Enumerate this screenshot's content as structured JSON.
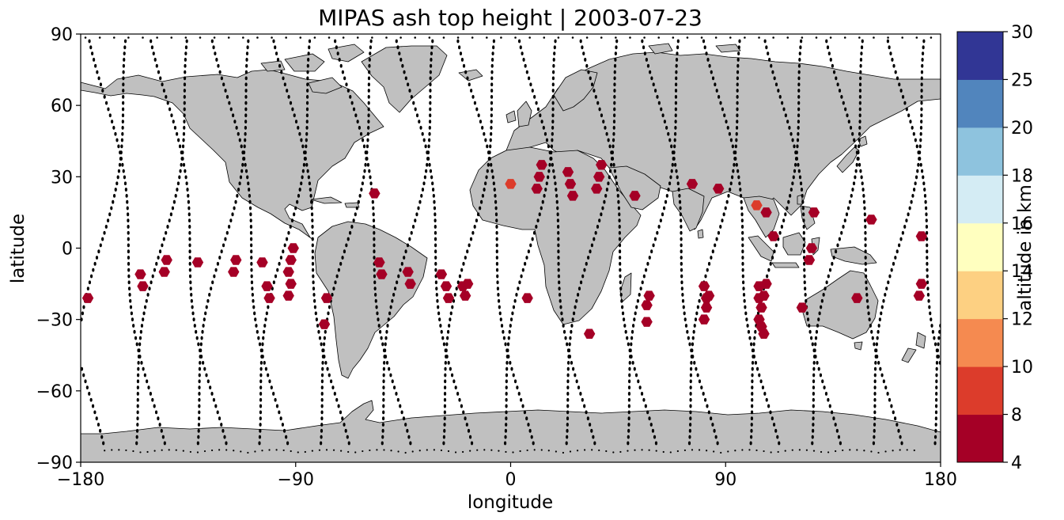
{
  "title": "MIPAS ash top height | 2003-07-23",
  "xlabel": "longitude",
  "ylabel": "latitude",
  "colorbar_label": "altitude in km",
  "x_ticks": [
    "−180",
    "−90",
    "0",
    "90",
    "180"
  ],
  "y_ticks": [
    "90",
    "60",
    "30",
    "0",
    "−30",
    "−60",
    "−90"
  ],
  "colorbar_ticks": [
    "4",
    "8",
    "10",
    "12",
    "14",
    "16",
    "18",
    "20",
    "25",
    "30"
  ],
  "colors": {
    "land": "#c0c0c0",
    "coast": "#000000",
    "track": "#000000",
    "ocean": "#ffffff"
  },
  "chart_data": {
    "type": "scatter",
    "projection": "plate-carree",
    "xlim": [
      -180,
      180
    ],
    "ylim": [
      -90,
      90
    ],
    "grid": false,
    "colorbar": {
      "boundaries": [
        4,
        8,
        10,
        12,
        14,
        16,
        18,
        20,
        25,
        30
      ],
      "colors": [
        "#a50026",
        "#d73027",
        "#f46d43",
        "#fdae61",
        "#fee090",
        "#ffffbf",
        "#e0f3f8",
        "#abd9e9",
        "#74add1",
        "#313695"
      ],
      "render_colors": [
        "#a50026",
        "#dc3c2b",
        "#f58a50",
        "#fdd082",
        "#ffffbf",
        "#d4ecf4",
        "#8ec3de",
        "#5185bd",
        "#313695"
      ]
    },
    "ash_points": [
      {
        "lon": -177,
        "lat": -21,
        "alt": 6
      },
      {
        "lon": -155,
        "lat": -11,
        "alt": 6
      },
      {
        "lon": -154,
        "lat": -16,
        "alt": 6
      },
      {
        "lon": -144,
        "lat": -5,
        "alt": 6
      },
      {
        "lon": -145,
        "lat": -10,
        "alt": 6
      },
      {
        "lon": -131,
        "lat": -6,
        "alt": 6
      },
      {
        "lon": -115,
        "lat": -5,
        "alt": 6
      },
      {
        "lon": -116,
        "lat": -10,
        "alt": 6
      },
      {
        "lon": -104,
        "lat": -6,
        "alt": 6
      },
      {
        "lon": -102,
        "lat": -16,
        "alt": 6
      },
      {
        "lon": -101,
        "lat": -21,
        "alt": 6
      },
      {
        "lon": -91,
        "lat": 0,
        "alt": 6
      },
      {
        "lon": -92,
        "lat": -5,
        "alt": 6
      },
      {
        "lon": -93,
        "lat": -10,
        "alt": 6
      },
      {
        "lon": -92,
        "lat": -15,
        "alt": 6
      },
      {
        "lon": -93,
        "lat": -20,
        "alt": 6
      },
      {
        "lon": -77,
        "lat": -21,
        "alt": 6
      },
      {
        "lon": -78,
        "lat": -32,
        "alt": 6
      },
      {
        "lon": -57,
        "lat": 23,
        "alt": 6
      },
      {
        "lon": -55,
        "lat": -6,
        "alt": 6
      },
      {
        "lon": -54,
        "lat": -11,
        "alt": 6
      },
      {
        "lon": -43,
        "lat": -10,
        "alt": 6
      },
      {
        "lon": -42,
        "lat": -15,
        "alt": 6
      },
      {
        "lon": -29,
        "lat": -11,
        "alt": 6
      },
      {
        "lon": -27,
        "lat": -16,
        "alt": 6
      },
      {
        "lon": -26,
        "lat": -21,
        "alt": 6
      },
      {
        "lon": -20,
        "lat": -16,
        "alt": 6
      },
      {
        "lon": -18,
        "lat": -15,
        "alt": 6
      },
      {
        "lon": -19,
        "lat": -20,
        "alt": 6
      },
      {
        "lon": 0,
        "lat": 27,
        "alt": 9
      },
      {
        "lon": 13,
        "lat": 35,
        "alt": 6
      },
      {
        "lon": 12,
        "lat": 30,
        "alt": 6
      },
      {
        "lon": 11,
        "lat": 25,
        "alt": 6
      },
      {
        "lon": 7,
        "lat": -21,
        "alt": 6
      },
      {
        "lon": 24,
        "lat": 32,
        "alt": 6
      },
      {
        "lon": 25,
        "lat": 27,
        "alt": 6
      },
      {
        "lon": 26,
        "lat": 22,
        "alt": 6
      },
      {
        "lon": 38,
        "lat": 35,
        "alt": 6
      },
      {
        "lon": 37,
        "lat": 30,
        "alt": 6
      },
      {
        "lon": 36,
        "lat": 25,
        "alt": 6
      },
      {
        "lon": 33,
        "lat": -36,
        "alt": 6
      },
      {
        "lon": 52,
        "lat": 22,
        "alt": 6
      },
      {
        "lon": 58,
        "lat": -20,
        "alt": 6
      },
      {
        "lon": 57,
        "lat": -24,
        "alt": 6
      },
      {
        "lon": 57,
        "lat": -31,
        "alt": 6
      },
      {
        "lon": 76,
        "lat": 27,
        "alt": 6
      },
      {
        "lon": 81,
        "lat": -16,
        "alt": 6
      },
      {
        "lon": 82,
        "lat": -21,
        "alt": 6
      },
      {
        "lon": 82,
        "lat": -25,
        "alt": 6
      },
      {
        "lon": 81,
        "lat": -30,
        "alt": 6
      },
      {
        "lon": 83,
        "lat": -20,
        "alt": 6
      },
      {
        "lon": 87,
        "lat": 25,
        "alt": 6
      },
      {
        "lon": 103,
        "lat": 18,
        "alt": 9
      },
      {
        "lon": 107,
        "lat": 15,
        "alt": 6
      },
      {
        "lon": 110,
        "lat": 5,
        "alt": 6
      },
      {
        "lon": 104,
        "lat": -16,
        "alt": 6
      },
      {
        "lon": 107,
        "lat": -15,
        "alt": 6
      },
      {
        "lon": 106,
        "lat": -20,
        "alt": 6
      },
      {
        "lon": 104,
        "lat": -21,
        "alt": 6
      },
      {
        "lon": 105,
        "lat": -25,
        "alt": 6
      },
      {
        "lon": 104,
        "lat": -30,
        "alt": 6
      },
      {
        "lon": 105,
        "lat": -33,
        "alt": 6
      },
      {
        "lon": 106,
        "lat": -36,
        "alt": 6
      },
      {
        "lon": 127,
        "lat": 15,
        "alt": 6
      },
      {
        "lon": 126,
        "lat": 0,
        "alt": 6
      },
      {
        "lon": 125,
        "lat": -5,
        "alt": 6
      },
      {
        "lon": 122,
        "lat": -25,
        "alt": 6
      },
      {
        "lon": 151,
        "lat": 12,
        "alt": 6
      },
      {
        "lon": 145,
        "lat": -21,
        "alt": 6
      },
      {
        "lon": 172,
        "lat": 5,
        "alt": 6
      },
      {
        "lon": 172,
        "lat": -15,
        "alt": 6
      },
      {
        "lon": 171,
        "lat": -20,
        "alt": 6
      }
    ]
  }
}
